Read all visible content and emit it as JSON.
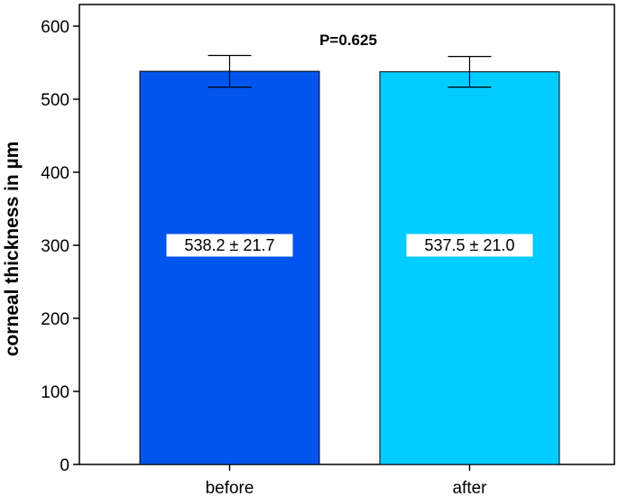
{
  "chart_data": {
    "type": "bar",
    "categories": [
      "before",
      "after"
    ],
    "values": [
      538.2,
      537.5
    ],
    "error": [
      21.7,
      21.0
    ],
    "colors": [
      "#0055ee",
      "#00ccff"
    ],
    "data_labels": [
      "538.2 ± 21.7",
      "537.5 ± 21.0"
    ],
    "annotation": "P=0.625",
    "xlabel": "",
    "ylabel": "corneal thickness in µm",
    "ylim": [
      0,
      600
    ],
    "yticks": [
      0,
      100,
      200,
      300,
      400,
      500,
      600
    ],
    "grid": false
  }
}
